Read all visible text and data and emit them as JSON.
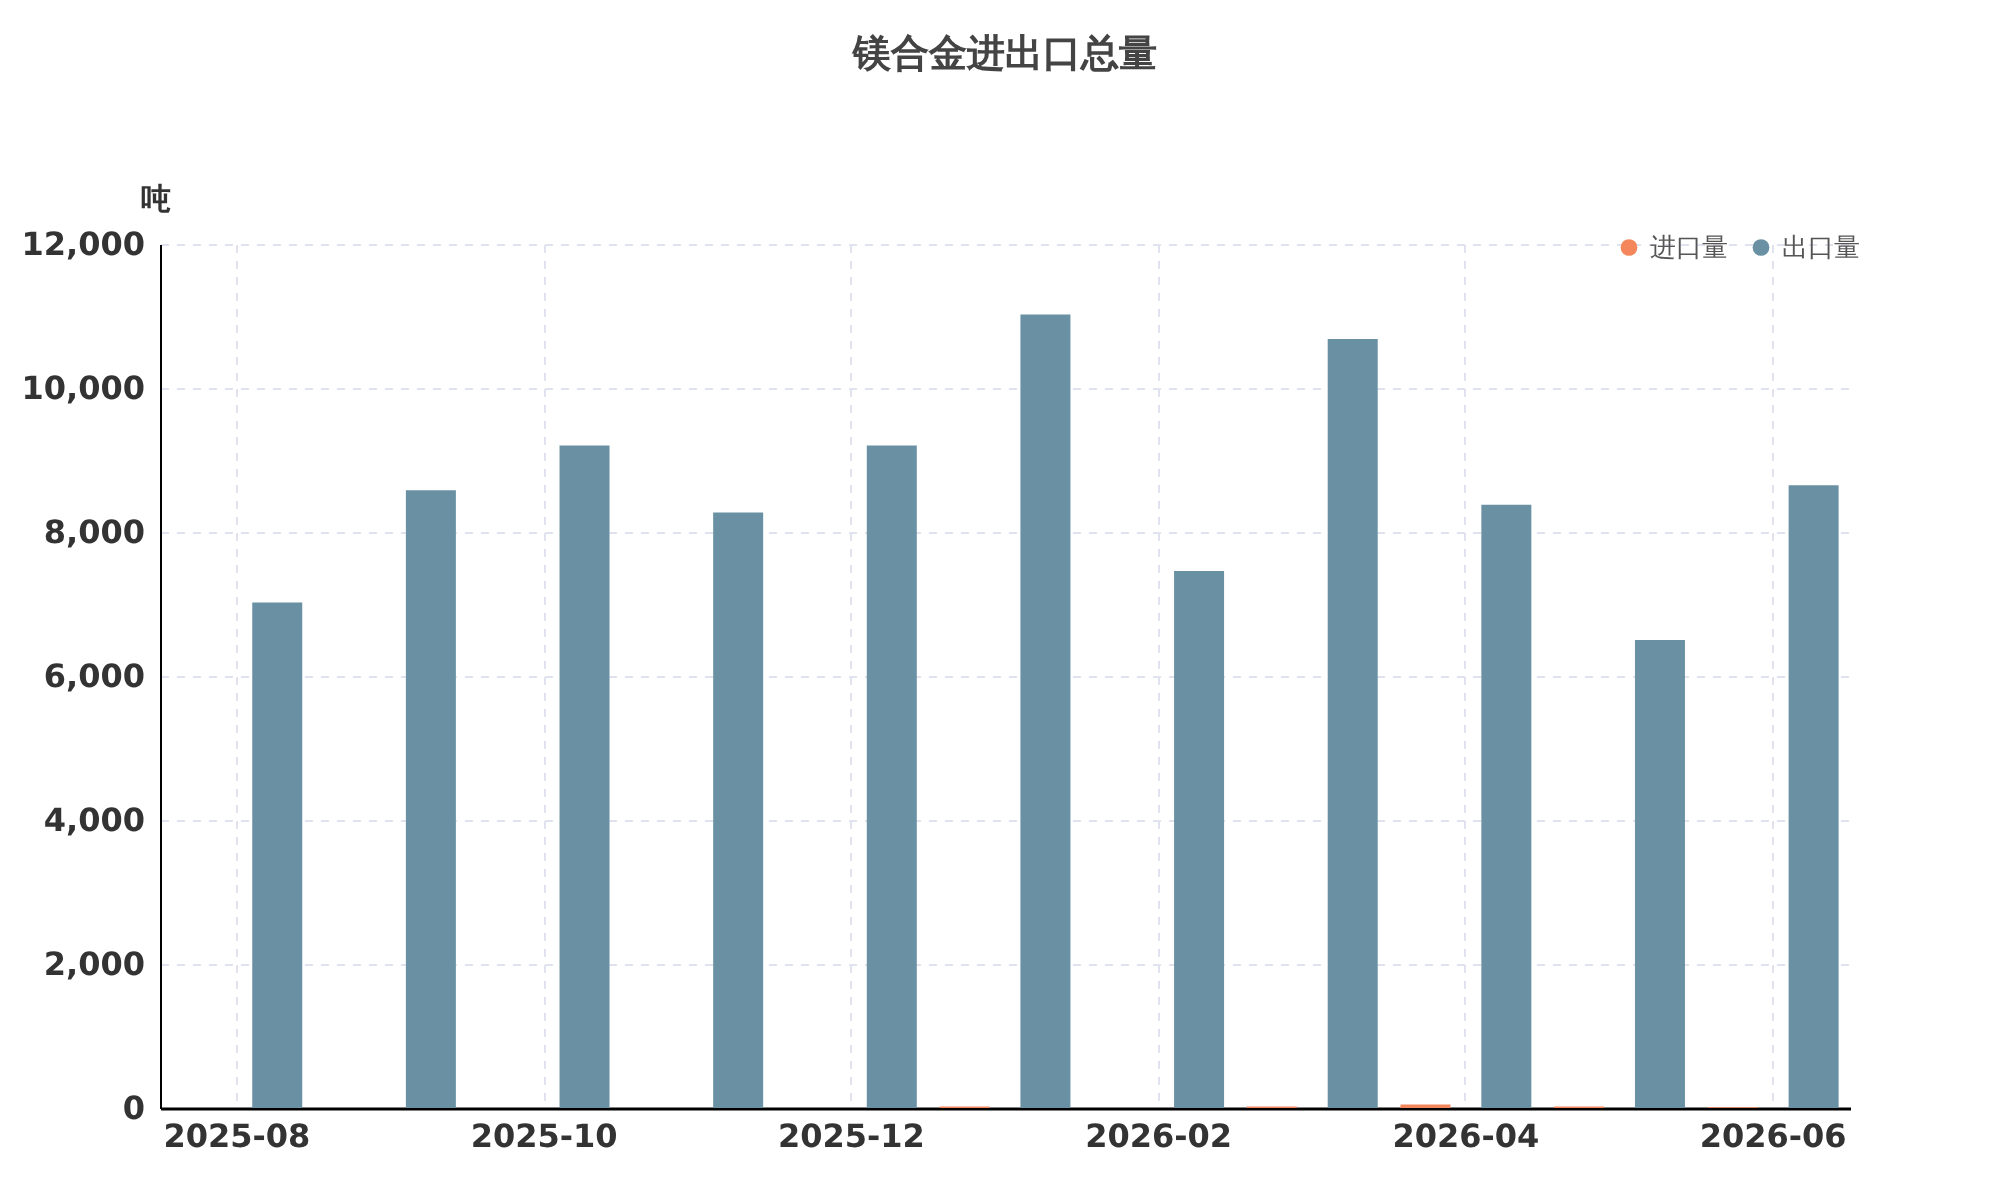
{
  "chart_data": {
    "type": "bar",
    "title": "镁合金进出口总量",
    "ylabel": "吨",
    "categories": [
      "2025-08",
      null,
      "2025-10",
      null,
      "2025-12",
      null,
      "2026-02",
      null,
      "2026-04",
      null,
      "2026-06"
    ],
    "series": [
      {
        "name": "进口量",
        "color": "#f4865b",
        "values": [
          0,
          0,
          0,
          0,
          0,
          20,
          0,
          20,
          50,
          20,
          10
        ]
      },
      {
        "name": "出口量",
        "color": "#6a91a3",
        "values": [
          7020,
          8580,
          9200,
          8270,
          9200,
          11020,
          7460,
          10680,
          8380,
          6500,
          8650
        ]
      }
    ],
    "ylim": [
      0,
      12000
    ],
    "yticks": [
      0,
      {
        "value": 2000,
        "label": "2,000"
      },
      {
        "value": 4000,
        "label": "4,000"
      },
      {
        "value": 6000,
        "label": "6,000"
      },
      {
        "value": 8000,
        "label": "8,000"
      },
      {
        "value": 10000,
        "label": "10,000"
      },
      {
        "value": 12000,
        "label": "12,000"
      }
    ],
    "grid": true,
    "legend": "top right"
  }
}
